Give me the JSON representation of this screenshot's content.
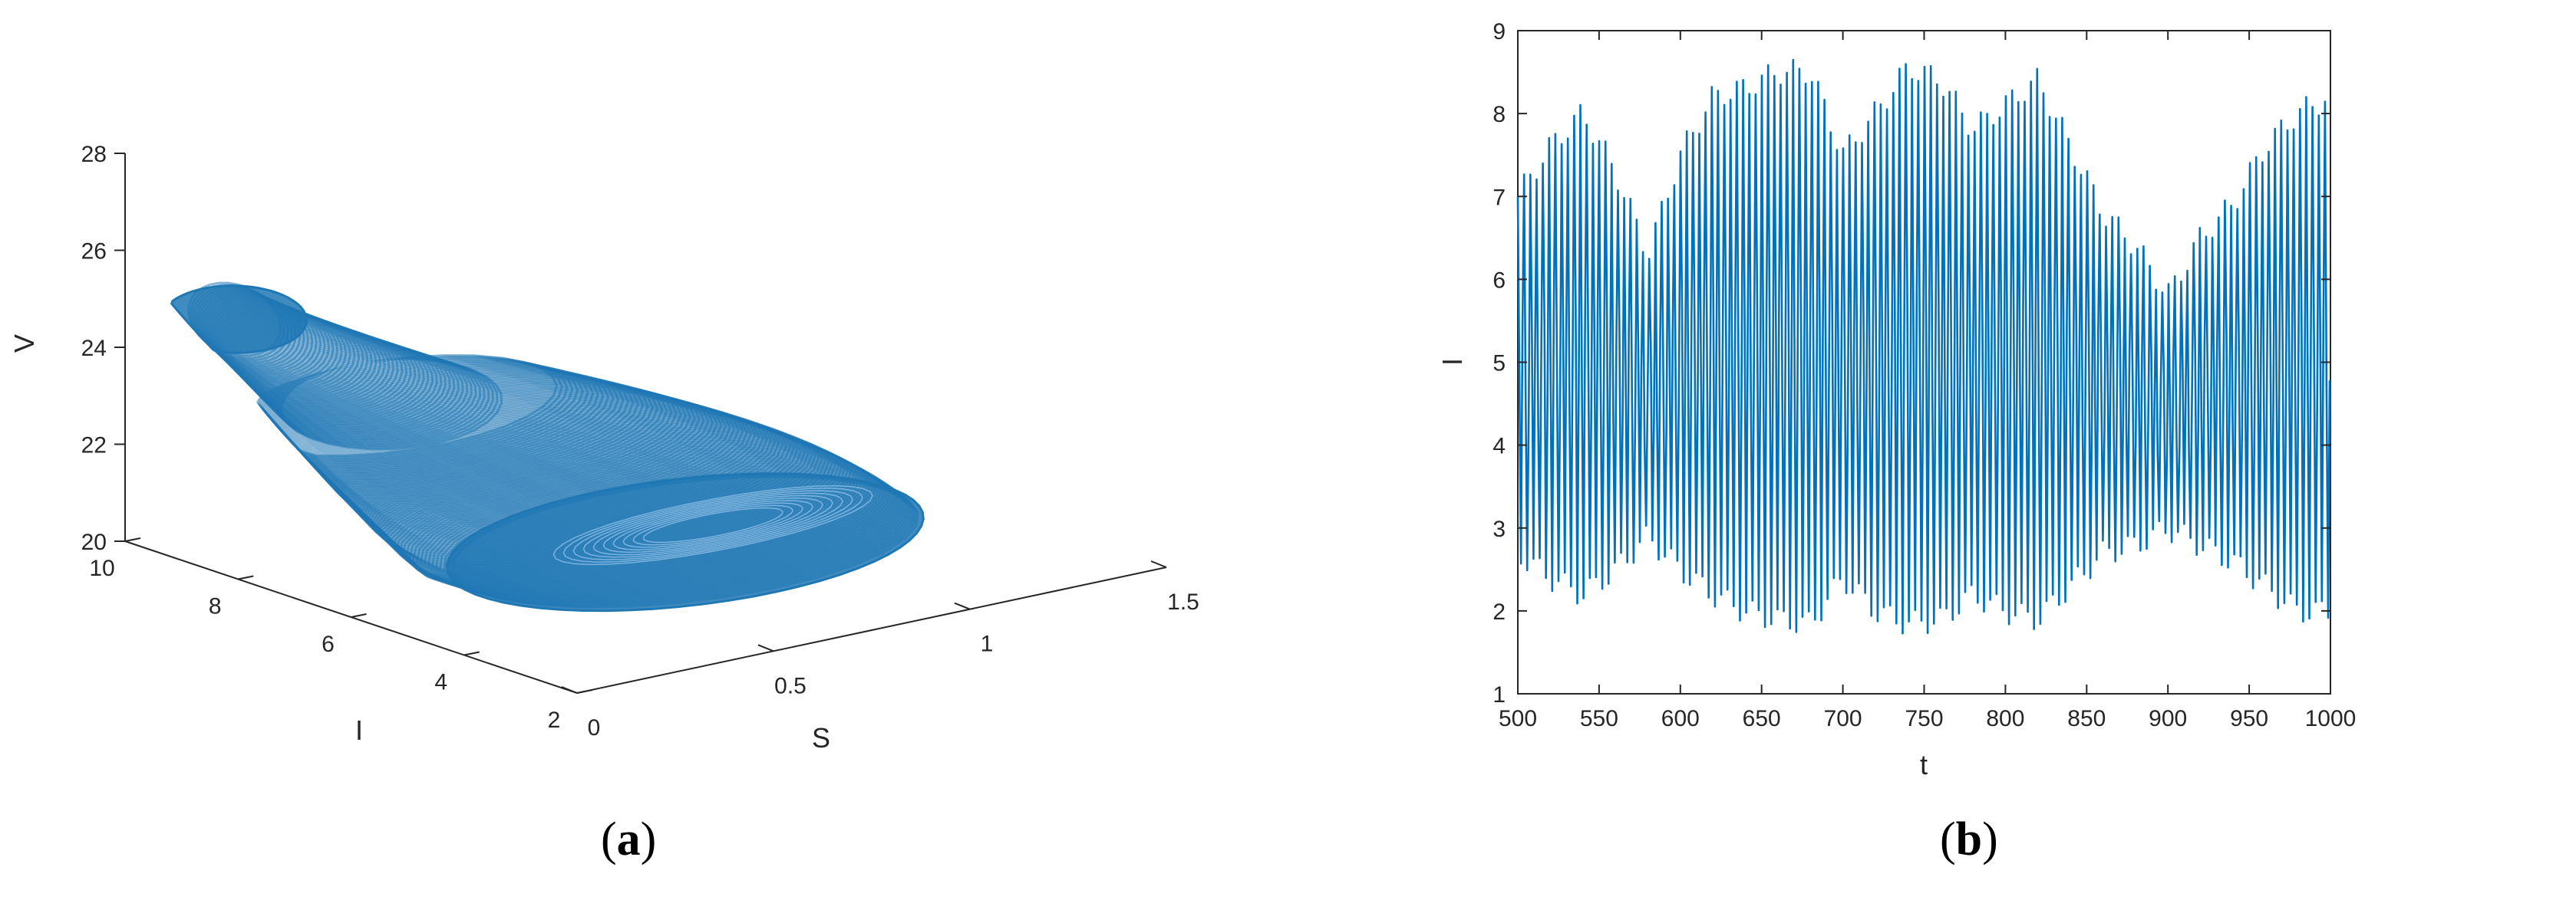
{
  "chart_data": [
    {
      "type": "line",
      "panel": "(a)",
      "panel_letter": "a",
      "projection": "3d",
      "xlabel": "S",
      "ylabel": "I",
      "zlabel": "V",
      "xlim": [
        0,
        1.5
      ],
      "ylim": [
        2,
        10
      ],
      "zlim": [
        20,
        28
      ],
      "xticks": [
        "0",
        "0.5",
        "1",
        "1.5"
      ],
      "yticks": [
        "2",
        "4",
        "6",
        "8",
        "10"
      ],
      "zticks": [
        "20",
        "22",
        "24",
        "26",
        "28"
      ],
      "grid": false,
      "series": [
        {
          "color": "#1f77b4",
          "description_points": [
            {
              "S": 0.05,
              "I": 2.5,
              "V": 21.2
            },
            {
              "S": 0.3,
              "I": 4.0,
              "V": 21.8
            },
            {
              "S": 0.9,
              "I": 5.5,
              "V": 22.0
            },
            {
              "S": 1.15,
              "I": 5.0,
              "V": 21.0
            },
            {
              "S": 0.6,
              "I": 3.0,
              "V": 20.6
            },
            {
              "S": 0.15,
              "I": 7.5,
              "V": 23.6
            },
            {
              "S": 0.05,
              "I": 9.5,
              "V": 25.0
            },
            {
              "S": 0.25,
              "I": 8.5,
              "V": 24.8
            }
          ]
        }
      ]
    },
    {
      "type": "line",
      "panel": "(b)",
      "panel_letter": "b",
      "xlabel": "t",
      "ylabel": "I",
      "xlim": [
        500,
        1000
      ],
      "ylim": [
        1,
        9
      ],
      "xticks": [
        500,
        550,
        600,
        650,
        700,
        750,
        800,
        850,
        900,
        950,
        1000
      ],
      "yticks": [
        1,
        2,
        3,
        4,
        5,
        6,
        7,
        8,
        9
      ],
      "grid": false,
      "series": [
        {
          "color": "#0072bd",
          "period": 3.85,
          "envelope_points": [
            {
              "t": 500,
              "max": 7.0,
              "min": 2.7
            },
            {
              "t": 520,
              "max": 7.6,
              "min": 2.4
            },
            {
              "t": 540,
              "max": 8.0,
              "min": 2.2
            },
            {
              "t": 560,
              "max": 7.3,
              "min": 2.5
            },
            {
              "t": 580,
              "max": 6.3,
              "min": 2.9
            },
            {
              "t": 600,
              "max": 7.5,
              "min": 2.5
            },
            {
              "t": 620,
              "max": 8.2,
              "min": 2.2
            },
            {
              "t": 640,
              "max": 8.3,
              "min": 2.0
            },
            {
              "t": 660,
              "max": 8.5,
              "min": 1.9
            },
            {
              "t": 680,
              "max": 8.5,
              "min": 1.85
            },
            {
              "t": 700,
              "max": 7.5,
              "min": 2.4
            },
            {
              "t": 720,
              "max": 8.0,
              "min": 2.0
            },
            {
              "t": 740,
              "max": 8.55,
              "min": 1.85
            },
            {
              "t": 760,
              "max": 8.4,
              "min": 1.9
            },
            {
              "t": 780,
              "max": 7.8,
              "min": 2.2
            },
            {
              "t": 800,
              "max": 8.1,
              "min": 2.0
            },
            {
              "t": 820,
              "max": 8.4,
              "min": 1.9
            },
            {
              "t": 840,
              "max": 7.6,
              "min": 2.3
            },
            {
              "t": 860,
              "max": 6.8,
              "min": 2.7
            },
            {
              "t": 880,
              "max": 6.4,
              "min": 2.8
            },
            {
              "t": 900,
              "max": 5.8,
              "min": 3.0
            },
            {
              "t": 920,
              "max": 6.5,
              "min": 2.8
            },
            {
              "t": 940,
              "max": 6.9,
              "min": 2.6
            },
            {
              "t": 960,
              "max": 7.6,
              "min": 2.3
            },
            {
              "t": 980,
              "max": 8.0,
              "min": 2.0
            },
            {
              "t": 1000,
              "max": 8.2,
              "min": 2.0
            }
          ]
        }
      ]
    }
  ]
}
